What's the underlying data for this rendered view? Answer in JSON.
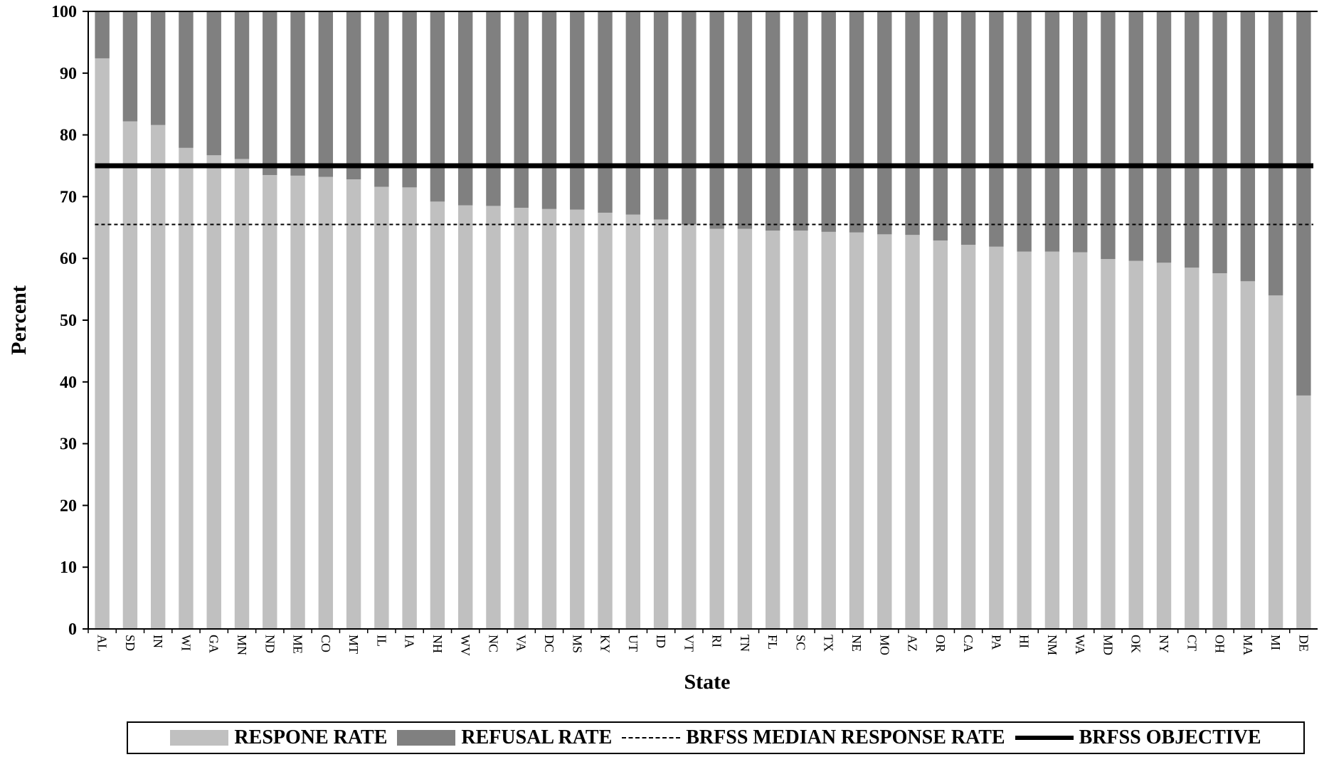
{
  "chart_data": {
    "type": "bar",
    "stacked": true,
    "xlabel": "State",
    "ylabel": "Percent",
    "ylim": [
      0,
      100
    ],
    "yticks": [
      0,
      10,
      20,
      30,
      40,
      50,
      60,
      70,
      80,
      90,
      100
    ],
    "categories": [
      "AL",
      "SD",
      "IN",
      "WI",
      "GA",
      "MN",
      "ND",
      "ME",
      "CO",
      "MT",
      "IL",
      "IA",
      "NH",
      "WV",
      "NC",
      "VA",
      "DC",
      "MS",
      "KY",
      "UT",
      "ID",
      "VT",
      "RI",
      "TN",
      "FL",
      "SC",
      "TX",
      "NE",
      "MO",
      "AZ",
      "OR",
      "CA",
      "PA",
      "HI",
      "NM",
      "WA",
      "MD",
      "OK",
      "NY",
      "CT",
      "OH",
      "MA",
      "MI",
      "DE"
    ],
    "series": [
      {
        "name": "RESPONE RATE",
        "color": "#c0c0c0",
        "values": [
          92.4,
          82.2,
          81.6,
          77.9,
          76.7,
          76.1,
          73.5,
          73.4,
          73.2,
          72.8,
          71.6,
          71.5,
          69.2,
          68.6,
          68.5,
          68.2,
          68.0,
          67.9,
          67.4,
          67.1,
          66.3,
          65.5,
          64.8,
          64.8,
          64.5,
          64.5,
          64.3,
          64.2,
          63.9,
          63.8,
          62.9,
          62.2,
          61.9,
          61.1,
          61.1,
          61.0,
          59.9,
          59.6,
          59.3,
          58.5,
          57.6,
          56.3,
          54.0,
          37.8
        ]
      },
      {
        "name": "REFUSAL RATE",
        "color": "#808080",
        "values": [
          7.6,
          17.8,
          18.4,
          22.1,
          23.3,
          23.9,
          26.5,
          26.6,
          26.8,
          27.2,
          28.4,
          28.5,
          30.8,
          31.4,
          31.5,
          31.8,
          32.0,
          32.1,
          32.6,
          32.9,
          33.7,
          34.5,
          35.2,
          35.2,
          35.5,
          35.5,
          35.7,
          35.8,
          36.1,
          36.2,
          37.1,
          37.8,
          38.1,
          38.9,
          38.9,
          39.0,
          40.1,
          40.4,
          40.7,
          41.5,
          42.4,
          43.7,
          46.0,
          62.2
        ]
      }
    ],
    "reference_lines": [
      {
        "name": "BRFSS MEDIAN RESPONSE RATE",
        "value": 65.5,
        "style": "dashed"
      },
      {
        "name": "BRFSS OBJECTIVE",
        "value": 75,
        "style": "solid"
      }
    ],
    "legend": "bottom",
    "grid": false
  }
}
